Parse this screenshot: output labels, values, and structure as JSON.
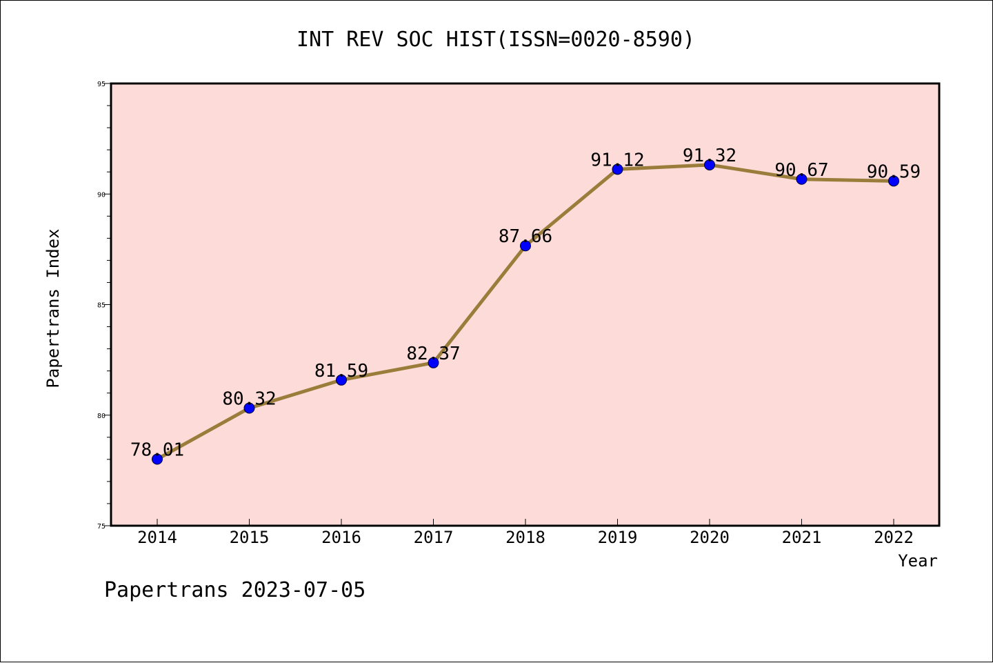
{
  "chart_data": {
    "type": "line",
    "title": "INT REV SOC HIST(ISSN=0020-8590)",
    "xlabel": "Year",
    "ylabel": "Papertrans Index",
    "categories": [
      "2014",
      "2015",
      "2016",
      "2017",
      "2018",
      "2019",
      "2020",
      "2021",
      "2022"
    ],
    "series": [
      {
        "values": [
          78.01,
          80.32,
          81.59,
          82.37,
          87.66,
          91.12,
          91.32,
          90.67,
          90.59
        ],
        "labels": [
          "78.01",
          "80.32",
          "81.59",
          "82.37",
          "87.66",
          "91.12",
          "91.32",
          "90.67",
          "90.59"
        ]
      }
    ],
    "ylim": [
      75,
      95
    ],
    "yticks": [
      "75",
      "80",
      "85",
      "90",
      "95"
    ],
    "grid": false,
    "plot_background": "#fddbd8",
    "line_color": "#9a7d3a",
    "marker_color": "#0000ff"
  },
  "footer": "Papertrans 2023-07-05"
}
